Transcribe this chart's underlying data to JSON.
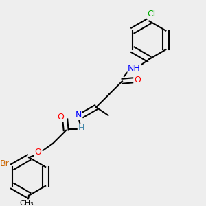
{
  "bg_color": "#eeeeee",
  "bond_color": "#000000",
  "bond_lw": 1.5,
  "atom_colors": {
    "N": "#0000ff",
    "O": "#ff0000",
    "Cl": "#00aa00",
    "Br": "#cc6600",
    "C": "#000000",
    "H": "#4488aa"
  },
  "font_size": 9,
  "font_size_small": 8
}
